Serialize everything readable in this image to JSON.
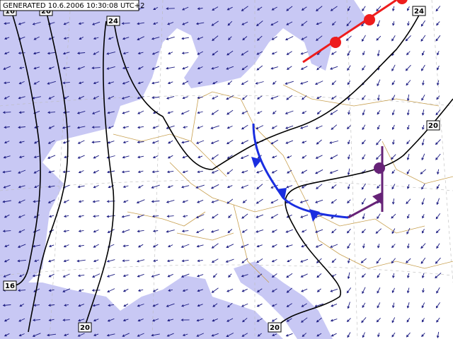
{
  "header": {
    "generated": "GENERATED 10.6.2006 10:30:08 UTC+2"
  },
  "isolines": [
    {
      "label": "16"
    },
    {
      "label": "20"
    },
    {
      "label": "24"
    },
    {
      "label": "24"
    },
    {
      "label": "20"
    },
    {
      "label": "16"
    },
    {
      "label": "20"
    },
    {
      "label": "20"
    }
  ]
}
